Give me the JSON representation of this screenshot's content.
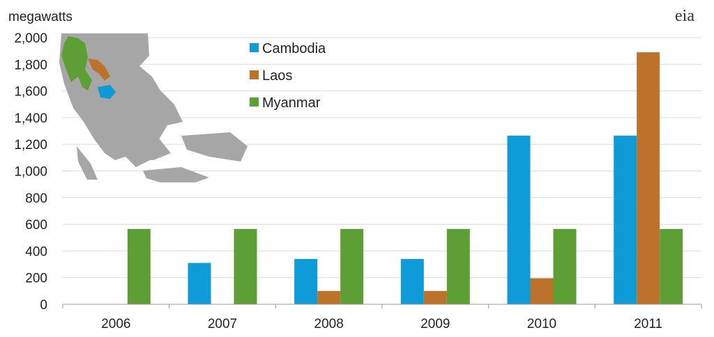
{
  "logo": "eia",
  "chart_data": {
    "type": "bar",
    "title": "",
    "ylabel": "megawatts",
    "xlabel": "",
    "categories": [
      "2006",
      "2007",
      "2008",
      "2009",
      "2010",
      "2011"
    ],
    "ylim": [
      0,
      2000
    ],
    "yticks": [
      0,
      200,
      400,
      600,
      800,
      1000,
      1200,
      1400,
      1600,
      1800,
      2000
    ],
    "ytick_labels": [
      "0",
      "200",
      "400",
      "600",
      "800",
      "1,000",
      "1,200",
      "1,400",
      "1,600",
      "1,800",
      "2,000"
    ],
    "grid": true,
    "legend_position": "top-left",
    "series": [
      {
        "name": "Cambodia",
        "color": "#0f9ad8",
        "values": [
          0,
          310,
          340,
          340,
          1265,
          1265
        ]
      },
      {
        "name": "Laos",
        "color": "#bd722b",
        "values": [
          0,
          0,
          100,
          100,
          195,
          1890
        ]
      },
      {
        "name": "Myanmar",
        "color": "#5d9e35",
        "values": [
          565,
          565,
          565,
          565,
          565,
          565
        ]
      }
    ]
  }
}
